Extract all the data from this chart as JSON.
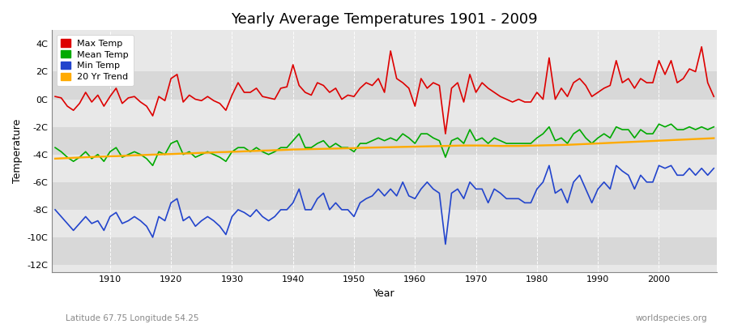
{
  "title": "Yearly Average Temperatures 1901 - 2009",
  "xlabel": "Year",
  "ylabel": "Temperature",
  "footnote_left": "Latitude 67.75 Longitude 54.25",
  "footnote_right": "worldspecies.org",
  "years": [
    1901,
    1902,
    1903,
    1904,
    1905,
    1906,
    1907,
    1908,
    1909,
    1910,
    1911,
    1912,
    1913,
    1914,
    1915,
    1916,
    1917,
    1918,
    1919,
    1920,
    1921,
    1922,
    1923,
    1924,
    1925,
    1926,
    1927,
    1928,
    1929,
    1930,
    1931,
    1932,
    1933,
    1934,
    1935,
    1936,
    1937,
    1938,
    1939,
    1940,
    1941,
    1942,
    1943,
    1944,
    1945,
    1946,
    1947,
    1948,
    1949,
    1950,
    1951,
    1952,
    1953,
    1954,
    1955,
    1956,
    1957,
    1958,
    1959,
    1960,
    1961,
    1962,
    1963,
    1964,
    1965,
    1966,
    1967,
    1968,
    1969,
    1970,
    1971,
    1972,
    1973,
    1974,
    1975,
    1976,
    1977,
    1978,
    1979,
    1980,
    1981,
    1982,
    1983,
    1984,
    1985,
    1986,
    1987,
    1988,
    1989,
    1990,
    1991,
    1992,
    1993,
    1994,
    1995,
    1996,
    1997,
    1998,
    1999,
    2000,
    2001,
    2002,
    2003,
    2004,
    2005,
    2006,
    2007,
    2008,
    2009
  ],
  "max_temp": [
    0.2,
    0.1,
    -0.5,
    -0.8,
    -0.3,
    0.5,
    -0.2,
    0.3,
    -0.5,
    0.2,
    0.8,
    -0.3,
    0.1,
    0.2,
    -0.2,
    -0.5,
    -1.2,
    0.2,
    -0.1,
    1.5,
    1.8,
    -0.2,
    0.3,
    0.0,
    -0.1,
    0.2,
    -0.1,
    -0.3,
    -0.8,
    0.3,
    1.2,
    0.5,
    0.5,
    0.8,
    0.2,
    0.1,
    0.0,
    0.8,
    0.9,
    2.5,
    1.0,
    0.5,
    0.3,
    1.2,
    1.0,
    0.5,
    0.8,
    0.0,
    0.3,
    0.2,
    0.8,
    1.2,
    1.0,
    1.5,
    0.5,
    3.5,
    1.5,
    1.2,
    0.8,
    -0.5,
    1.5,
    0.8,
    1.2,
    1.0,
    -2.5,
    0.8,
    1.2,
    -0.2,
    1.8,
    0.5,
    1.2,
    0.8,
    0.5,
    0.2,
    0.0,
    -0.2,
    0.0,
    -0.2,
    -0.2,
    0.5,
    0.0,
    3.0,
    0.0,
    0.8,
    0.2,
    1.2,
    1.5,
    1.0,
    0.2,
    0.5,
    0.8,
    1.0,
    2.8,
    1.2,
    1.5,
    0.8,
    1.5,
    1.2,
    1.2,
    2.8,
    1.8,
    2.8,
    1.2,
    1.5,
    2.2,
    2.0,
    3.8,
    1.2,
    0.2
  ],
  "mean_temp": [
    -3.5,
    -3.8,
    -4.2,
    -4.5,
    -4.2,
    -3.8,
    -4.3,
    -4.0,
    -4.5,
    -3.8,
    -3.5,
    -4.2,
    -4.0,
    -3.8,
    -4.0,
    -4.3,
    -4.8,
    -3.8,
    -4.0,
    -3.2,
    -3.0,
    -4.0,
    -3.8,
    -4.2,
    -4.0,
    -3.8,
    -4.0,
    -4.2,
    -4.5,
    -3.8,
    -3.5,
    -3.5,
    -3.8,
    -3.5,
    -3.8,
    -4.0,
    -3.8,
    -3.5,
    -3.5,
    -3.0,
    -2.5,
    -3.5,
    -3.5,
    -3.2,
    -3.0,
    -3.5,
    -3.2,
    -3.5,
    -3.5,
    -3.8,
    -3.2,
    -3.2,
    -3.0,
    -2.8,
    -3.0,
    -2.8,
    -3.0,
    -2.5,
    -2.8,
    -3.2,
    -2.5,
    -2.5,
    -2.8,
    -3.0,
    -4.2,
    -3.0,
    -2.8,
    -3.2,
    -2.2,
    -3.0,
    -2.8,
    -3.2,
    -2.8,
    -3.0,
    -3.2,
    -3.2,
    -3.2,
    -3.2,
    -3.2,
    -2.8,
    -2.5,
    -2.0,
    -3.0,
    -2.8,
    -3.2,
    -2.5,
    -2.2,
    -2.8,
    -3.2,
    -2.8,
    -2.5,
    -2.8,
    -2.0,
    -2.2,
    -2.2,
    -2.8,
    -2.2,
    -2.5,
    -2.5,
    -1.8,
    -2.0,
    -1.8,
    -2.2,
    -2.2,
    -2.0,
    -2.2,
    -2.0,
    -2.2,
    -2.0
  ],
  "min_temp": [
    -8.0,
    -8.5,
    -9.0,
    -9.5,
    -9.0,
    -8.5,
    -9.0,
    -8.8,
    -9.5,
    -8.5,
    -8.2,
    -9.0,
    -8.8,
    -8.5,
    -8.8,
    -9.2,
    -10.0,
    -8.5,
    -8.8,
    -7.5,
    -7.2,
    -8.8,
    -8.5,
    -9.2,
    -8.8,
    -8.5,
    -8.8,
    -9.2,
    -9.8,
    -8.5,
    -8.0,
    -8.2,
    -8.5,
    -8.0,
    -8.5,
    -8.8,
    -8.5,
    -8.0,
    -8.0,
    -7.5,
    -6.5,
    -8.0,
    -8.0,
    -7.2,
    -6.8,
    -8.0,
    -7.5,
    -8.0,
    -8.0,
    -8.5,
    -7.5,
    -7.2,
    -7.0,
    -6.5,
    -7.0,
    -6.5,
    -7.0,
    -6.0,
    -7.0,
    -7.2,
    -6.5,
    -6.0,
    -6.5,
    -6.8,
    -10.5,
    -6.8,
    -6.5,
    -7.2,
    -6.0,
    -6.5,
    -6.5,
    -7.5,
    -6.5,
    -6.8,
    -7.2,
    -7.2,
    -7.2,
    -7.5,
    -7.5,
    -6.5,
    -6.0,
    -4.8,
    -6.8,
    -6.5,
    -7.5,
    -6.0,
    -5.5,
    -6.5,
    -7.5,
    -6.5,
    -6.0,
    -6.5,
    -4.8,
    -5.2,
    -5.5,
    -6.5,
    -5.5,
    -6.0,
    -6.0,
    -4.8,
    -5.0,
    -4.8,
    -5.5,
    -5.5,
    -5.0,
    -5.5,
    -5.0,
    -5.5,
    -5.0
  ],
  "trend_20yr": [
    -4.3,
    -4.28,
    -4.26,
    -4.24,
    -4.22,
    -4.2,
    -4.18,
    -4.16,
    -4.15,
    -4.13,
    -4.12,
    -4.1,
    -4.08,
    -4.06,
    -4.05,
    -4.03,
    -4.01,
    -4.0,
    -3.98,
    -3.97,
    -3.95,
    -3.93,
    -3.92,
    -3.9,
    -3.88,
    -3.87,
    -3.85,
    -3.83,
    -3.82,
    -3.8,
    -3.79,
    -3.77,
    -3.75,
    -3.74,
    -3.72,
    -3.71,
    -3.69,
    -3.68,
    -3.66,
    -3.64,
    -3.63,
    -3.62,
    -3.61,
    -3.6,
    -3.59,
    -3.58,
    -3.57,
    -3.56,
    -3.55,
    -3.54,
    -3.52,
    -3.51,
    -3.5,
    -3.49,
    -3.48,
    -3.47,
    -3.46,
    -3.45,
    -3.44,
    -3.43,
    -3.42,
    -3.41,
    -3.4,
    -3.39,
    -3.38,
    -3.37,
    -3.36,
    -3.35,
    -3.35,
    -3.35,
    -3.35,
    -3.36,
    -3.37,
    -3.38,
    -3.38,
    -3.38,
    -3.38,
    -3.37,
    -3.36,
    -3.35,
    -3.34,
    -3.33,
    -3.32,
    -3.31,
    -3.3,
    -3.28,
    -3.26,
    -3.24,
    -3.22,
    -3.2,
    -3.18,
    -3.16,
    -3.14,
    -3.12,
    -3.1,
    -3.08,
    -3.06,
    -3.04,
    -3.02,
    -3.0,
    -2.98,
    -2.96,
    -2.94,
    -2.92,
    -2.9,
    -2.88,
    -2.86,
    -2.84,
    -2.82
  ],
  "max_color": "#dd0000",
  "mean_color": "#00aa00",
  "min_color": "#2244cc",
  "trend_color": "#ffaa00",
  "bg_color": "#e8e8e8",
  "stripe_light": "#e8e8e8",
  "stripe_dark": "#d8d8d8",
  "ylim": [
    -12.5,
    5.0
  ],
  "yticks": [
    -12,
    -10,
    -8,
    -6,
    -4,
    -2,
    0,
    2,
    4
  ],
  "ytick_labels": [
    "-12C",
    "-10C",
    "-8C",
    "-6C",
    "-4C",
    "-2C",
    "0C",
    "2C",
    "4C"
  ],
  "legend_labels": [
    "Max Temp",
    "Mean Temp",
    "Min Temp",
    "20 Yr Trend"
  ]
}
